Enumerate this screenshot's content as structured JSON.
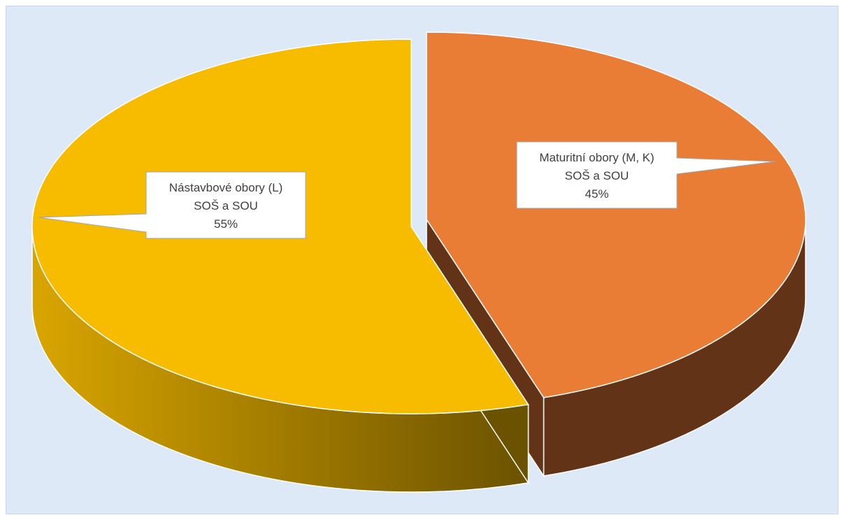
{
  "chart_data": {
    "type": "pie",
    "style": "3d-exploded",
    "slices": [
      {
        "name": "Maturitní obory (M, K) SOŠ a SOU",
        "label_lines": [
          "Maturitní obory (M, K)",
          "SOŠ a SOU",
          "45%"
        ],
        "value": 45,
        "color": "#ea7d35",
        "side_color": "#623316"
      },
      {
        "name": "Nástavbové obory (L) SOŠ a SOU",
        "label_lines": [
          "Nástavbové obory (L)",
          "SOŠ a SOU",
          "55%"
        ],
        "value": 55,
        "color": "#f7bc00",
        "side_color": "#b98b00"
      }
    ],
    "title": "",
    "legend": "none",
    "background_color": "#dde9f6"
  }
}
